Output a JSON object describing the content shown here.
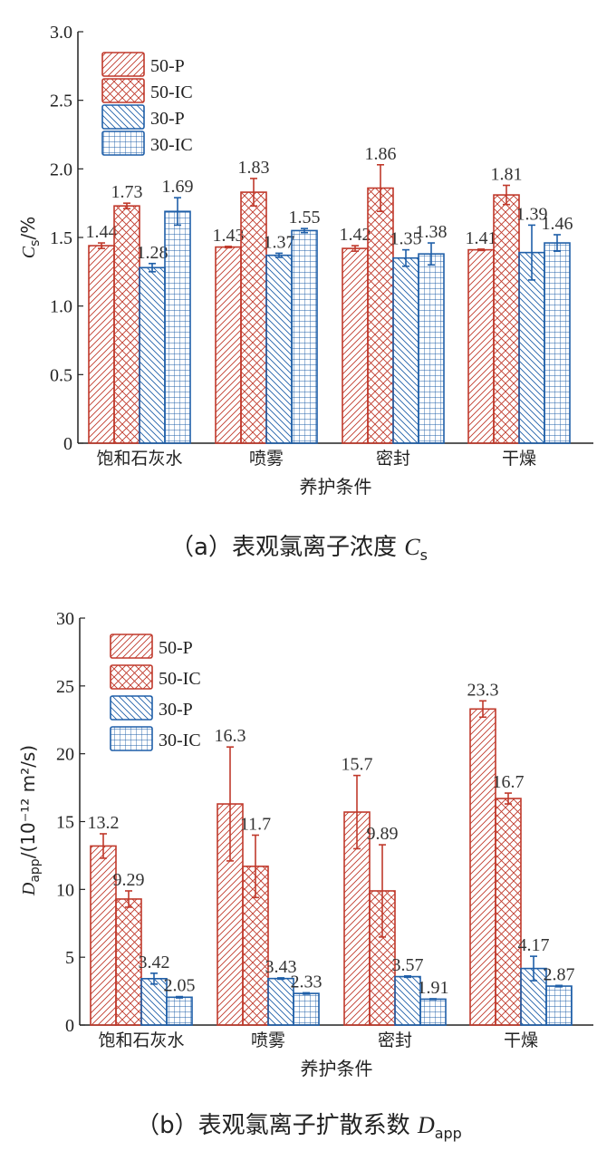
{
  "colors": {
    "red": "#c0392b",
    "blue": "#1f5fa8"
  },
  "chart_data": [
    {
      "type": "bar",
      "title": "",
      "xlabel": "养护条件",
      "ylabel_main": "C",
      "ylabel_sub": "s",
      "ylabel_unit": "/%",
      "ylim": [
        0,
        3.0
      ],
      "yticks": [
        "0",
        "0.5",
        "1.0",
        "1.5",
        "2.0",
        "2.5",
        "3.0"
      ],
      "ytick_values": [
        0,
        0.5,
        1.0,
        1.5,
        2.0,
        2.5,
        3.0
      ],
      "categories": [
        "饱和石灰水",
        "喷雾",
        "密封",
        "干燥"
      ],
      "legend_position": "top-left",
      "series": [
        {
          "name": "50-P",
          "values": [
            1.44,
            1.43,
            1.42,
            1.41
          ],
          "errors": [
            0.02,
            0.005,
            0.02,
            0.005
          ],
          "labels": [
            "1.44",
            "1.43",
            "1.42",
            "1.41"
          ]
        },
        {
          "name": "50-IC",
          "values": [
            1.73,
            1.83,
            1.86,
            1.81
          ],
          "errors": [
            0.02,
            0.1,
            0.17,
            0.07
          ],
          "labels": [
            "1.73",
            "1.83",
            "1.86",
            "1.81"
          ]
        },
        {
          "name": "30-P",
          "values": [
            1.28,
            1.37,
            1.35,
            1.39
          ],
          "errors": [
            0.03,
            0.015,
            0.06,
            0.2
          ],
          "labels": [
            "1.28",
            "1.37",
            "1.35",
            "1.39"
          ]
        },
        {
          "name": "30-IC",
          "values": [
            1.69,
            1.55,
            1.38,
            1.46
          ],
          "errors": [
            0.1,
            0.015,
            0.08,
            0.06
          ],
          "labels": [
            "1.69",
            "1.55",
            "1.38",
            "1.46"
          ]
        }
      ],
      "caption": {
        "prefix": "（a）表观氯离子浓度 ",
        "sym": "C",
        "sub": "s"
      }
    },
    {
      "type": "bar",
      "title": "",
      "xlabel": "养护条件",
      "ylabel_main": "D",
      "ylabel_sub": "app",
      "ylabel_unit": "/(10⁻¹² m²/s)",
      "ylim": [
        0,
        30
      ],
      "yticks": [
        "0",
        "5",
        "10",
        "15",
        "20",
        "25",
        "30"
      ],
      "ytick_values": [
        0,
        5,
        10,
        15,
        20,
        25,
        30
      ],
      "categories": [
        "饱和石灰水",
        "喷雾",
        "密封",
        "干燥"
      ],
      "legend_position": "top-left",
      "series": [
        {
          "name": "50-P",
          "values": [
            13.2,
            16.3,
            15.7,
            23.3
          ],
          "errors": [
            0.9,
            4.2,
            2.7,
            0.6
          ],
          "labels": [
            "13.2",
            "16.3",
            "15.7",
            "23.3"
          ]
        },
        {
          "name": "50-IC",
          "values": [
            9.29,
            11.7,
            9.89,
            16.7
          ],
          "errors": [
            0.6,
            2.3,
            3.4,
            0.4
          ],
          "labels": [
            "9.29",
            "11.7",
            "9.89",
            "16.7"
          ]
        },
        {
          "name": "30-P",
          "values": [
            3.42,
            3.43,
            3.57,
            4.17
          ],
          "errors": [
            0.4,
            0.05,
            0.05,
            0.9
          ],
          "labels": [
            "3.42",
            "3.43",
            "3.57",
            "4.17"
          ]
        },
        {
          "name": "30-IC",
          "values": [
            2.05,
            2.33,
            1.91,
            2.87
          ],
          "errors": [
            0.05,
            0.05,
            0.03,
            0.05
          ],
          "labels": [
            "2.05",
            "2.33",
            "1.91",
            "2.87"
          ]
        }
      ],
      "caption": {
        "prefix": "（b）表观氯离子扩散系数 ",
        "sym": "D",
        "sub": "app"
      }
    }
  ]
}
